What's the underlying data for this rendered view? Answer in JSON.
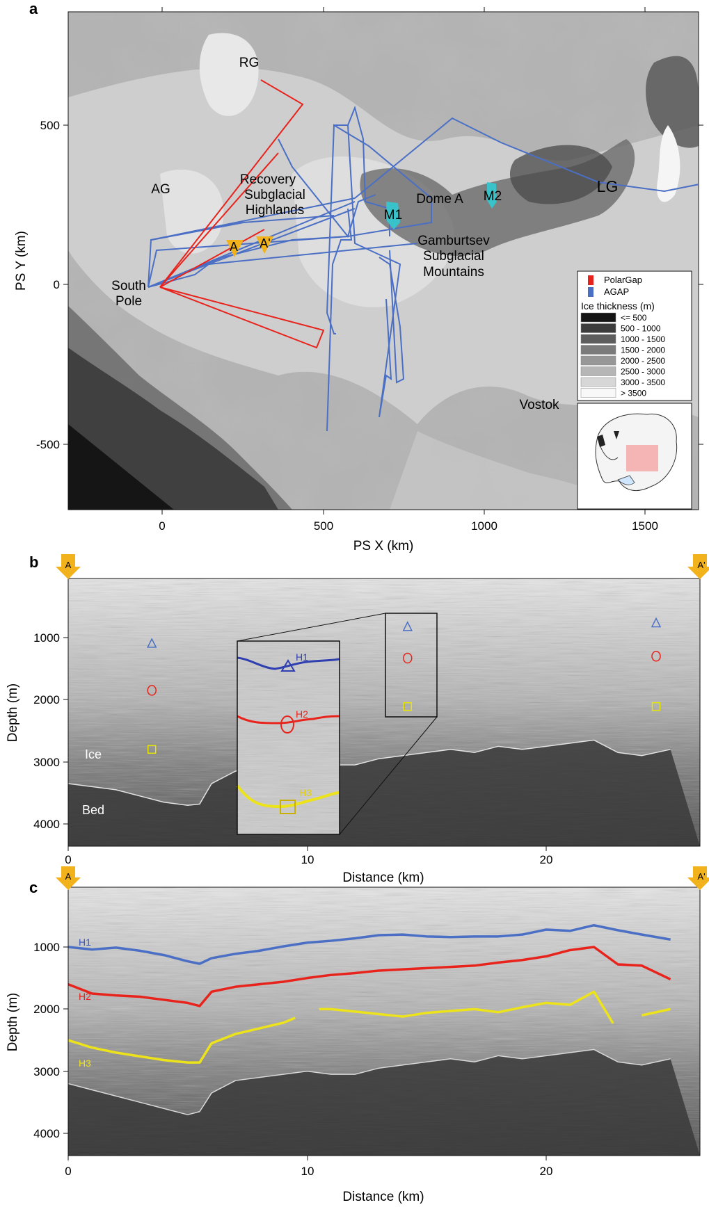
{
  "figure": {
    "panels": [
      {
        "label": "a",
        "chart_type": "map",
        "xlabel": "PS X (km)",
        "ylabel": "PS Y (km)",
        "x_ticks": [
          "0",
          "500",
          "1000",
          "1500"
        ],
        "y_ticks": [
          "500",
          "0",
          "-500"
        ],
        "place_labels": {
          "rg": "RG",
          "ag": "AG",
          "lg": "LG",
          "recovery": [
            "Recovery",
            "Subglacial",
            "Highlands"
          ],
          "south_pole": [
            "South",
            "Pole"
          ],
          "dome_a": "Dome A",
          "gamburtsev": [
            "Gamburtsev",
            "Subglacial",
            "Mountains"
          ],
          "vostok": "Vostok",
          "m1": "M1",
          "m2": "M2",
          "a": "A",
          "a_prime": "A'"
        },
        "legend": {
          "survey_entries": [
            {
              "label": "PolarGap",
              "color": "#e8231c"
            },
            {
              "label": "AGAP",
              "color": "#4a6fc4"
            }
          ],
          "ice_title": "Ice thickness (m)",
          "ice_entries": [
            {
              "label": "<= 500",
              "color": "#141414"
            },
            {
              "label": "500 - 1000",
              "color": "#3c3c3c"
            },
            {
              "label": "1000 - 1500",
              "color": "#5d5d5d"
            },
            {
              "label": "1500 - 2000",
              "color": "#7b7b7b"
            },
            {
              "label": "2000 - 2500",
              "color": "#979797"
            },
            {
              "label": "2500 - 3000",
              "color": "#b6b6b6"
            },
            {
              "label": "3000 - 3500",
              "color": "#d7d7d7"
            },
            {
              "label": "> 3500",
              "color": "#f8f8f8"
            }
          ]
        }
      },
      {
        "label": "b",
        "chart_type": "heatmap",
        "xlabel": "Distance (km)",
        "ylabel": "Depth (m)",
        "x_ticks": [
          "0",
          "10",
          "20"
        ],
        "y_ticks": [
          "1000",
          "2000",
          "3000",
          "4000"
        ],
        "marker_left": "A",
        "marker_right": "A'",
        "texts": {
          "ice": "Ice",
          "bed": "Bed"
        },
        "inset_labels": [
          "H1",
          "H2",
          "H3"
        ]
      },
      {
        "label": "c",
        "chart_type": "heatmap",
        "xlabel": "Distance (km)",
        "ylabel": "Depth (m)",
        "x_ticks": [
          "0",
          "10",
          "20"
        ],
        "y_ticks": [
          "1000",
          "2000",
          "3000",
          "4000"
        ],
        "marker_left": "A",
        "marker_right": "A'",
        "horizon_labels": [
          "H1",
          "H2",
          "H3"
        ]
      }
    ]
  },
  "chart_data": [
    {
      "type": "scatter",
      "xlabel": "PS X (km)",
      "ylabel": "PS Y (km)",
      "xlim": [
        -300,
        1680
      ],
      "ylim": [
        -710,
        760
      ],
      "series": [
        {
          "name": "PolarGap",
          "color": "#e8231c",
          "x": [
            -20,
            370,
            430,
            -20,
            490,
            470,
            -20,
            310
          ],
          "y": [
            -10,
            560,
            640,
            -10,
            -130,
            -200,
            -10,
            270
          ]
        },
        {
          "name": "AGAP",
          "color": "#4a6fc4",
          "x": [
            -50,
            590,
            1300,
            580,
            420,
            390,
            560,
            590,
            500,
            740
          ],
          "y": [
            140,
            130,
            280,
            140,
            450,
            590,
            380,
            -450,
            -300,
            -200
          ]
        }
      ],
      "points": [
        {
          "label": "A",
          "x": 220,
          "y": 120
        },
        {
          "label": "A'",
          "x": 310,
          "y": 135
        }
      ]
    },
    {
      "type": "heatmap",
      "title": "",
      "xlabel": "Distance (km)",
      "ylabel": "Depth (m)",
      "xlim": [
        0,
        25.2
      ],
      "ylim": [
        4400,
        100
      ],
      "markers": [
        {
          "shape": "triangle",
          "color": "#4a6fc4",
          "points": [
            [
              3.5,
              1100
            ],
            [
              14.2,
              830
            ],
            [
              24.6,
              770
            ]
          ]
        },
        {
          "shape": "circle",
          "color": "#e8231c",
          "points": [
            [
              3.5,
              1850
            ],
            [
              14.2,
              1330
            ],
            [
              24.6,
              1300
            ]
          ]
        },
        {
          "shape": "square",
          "color": "#e6e600",
          "points": [
            [
              3.5,
              2800
            ],
            [
              14.2,
              2110
            ],
            [
              24.6,
              2110
            ]
          ]
        }
      ],
      "bed": {
        "x": [
          0,
          1,
          2,
          3,
          4,
          5,
          5.5,
          6,
          7,
          8,
          9,
          10,
          11,
          12,
          13,
          14,
          15,
          16,
          17,
          18,
          19,
          20,
          21,
          22,
          23,
          24,
          25.2
        ],
        "y": [
          3350,
          3400,
          3450,
          3550,
          3650,
          3700,
          3680,
          3350,
          3150,
          3100,
          3050,
          3000,
          3050,
          3050,
          2950,
          2900,
          2850,
          2800,
          2850,
          2750,
          2800,
          2750,
          2700,
          2650,
          2850,
          2900,
          2800
        ]
      }
    },
    {
      "type": "line",
      "title": "",
      "xlabel": "Distance (km)",
      "ylabel": "Depth (m)",
      "xlim": [
        0,
        25.2
      ],
      "ylim": [
        4400,
        100
      ],
      "series": [
        {
          "name": "H1",
          "color": "#4a6fc4",
          "x": [
            0,
            1,
            2,
            3,
            4,
            5,
            5.5,
            6,
            7,
            8,
            9,
            10,
            11,
            12,
            13,
            14,
            15,
            16,
            17,
            18,
            19,
            20,
            21,
            22,
            23,
            24,
            25.2
          ],
          "y": [
            1000,
            1040,
            1010,
            1060,
            1130,
            1230,
            1270,
            1180,
            1110,
            1060,
            990,
            930,
            900,
            860,
            810,
            800,
            830,
            840,
            830,
            830,
            800,
            720,
            740,
            650,
            730,
            800,
            880
          ]
        },
        {
          "name": "H2",
          "color": "#e8231c",
          "x": [
            0,
            1,
            2,
            3,
            4,
            5,
            5.5,
            6,
            7,
            8,
            9,
            10,
            11,
            12,
            13,
            14,
            15,
            16,
            17,
            18,
            19,
            20,
            21,
            22,
            23,
            24,
            25.2
          ],
          "y": [
            1600,
            1750,
            1780,
            1800,
            1850,
            1900,
            1950,
            1720,
            1640,
            1600,
            1560,
            1500,
            1450,
            1420,
            1380,
            1360,
            1340,
            1320,
            1300,
            1250,
            1210,
            1150,
            1050,
            1000,
            1280,
            1300,
            1520
          ]
        },
        {
          "name": "H3",
          "color": "#ede31b",
          "x": [
            0,
            1,
            2,
            3,
            4,
            5,
            5.5,
            6,
            7,
            8,
            9,
            9.5,
            10,
            10.5,
            11,
            12,
            13,
            14,
            15,
            16,
            17,
            18,
            19,
            20,
            21,
            22,
            22.8,
            23,
            24,
            25.2
          ],
          "y": [
            2500,
            2620,
            2700,
            2760,
            2820,
            2860,
            2860,
            2550,
            2400,
            2310,
            2220,
            2140,
            null,
            2000,
            2000,
            2040,
            2080,
            2120,
            2060,
            2030,
            2000,
            2050,
            1970,
            1900,
            1930,
            1720,
            2230,
            null,
            2100,
            2000
          ]
        },
        {
          "name": "bed",
          "color": "#d8d8d8",
          "x": [
            0,
            1,
            2,
            3,
            4,
            5,
            5.5,
            6,
            7,
            8,
            9,
            10,
            11,
            12,
            13,
            14,
            15,
            16,
            17,
            18,
            19,
            20,
            21,
            22,
            23,
            24,
            25.2
          ],
          "y": [
            3200,
            3300,
            3400,
            3500,
            3600,
            3700,
            3650,
            3350,
            3150,
            3100,
            3050,
            3000,
            3050,
            3050,
            2950,
            2900,
            2850,
            2800,
            2850,
            2750,
            2800,
            2750,
            2700,
            2650,
            2850,
            2900,
            2800
          ]
        }
      ]
    }
  ]
}
